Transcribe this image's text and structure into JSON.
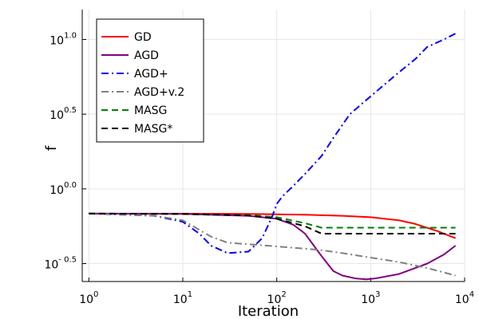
{
  "chart_data": {
    "type": "line",
    "xlabel": "Iteration",
    "ylabel": "f",
    "xscale": "log10",
    "yscale": "log10",
    "xlim": [
      0.85,
      10000
    ],
    "ylim": [
      -0.62,
      1.2
    ],
    "xticks": [
      {
        "value": 1,
        "base": "10",
        "exp": "0"
      },
      {
        "value": 10,
        "base": "10",
        "exp": "1"
      },
      {
        "value": 100,
        "base": "10",
        "exp": "2"
      },
      {
        "value": 1000,
        "base": "10",
        "exp": "3"
      },
      {
        "value": 10000,
        "base": "10",
        "exp": "4"
      }
    ],
    "yticks": [
      {
        "value": -0.5,
        "base": "10",
        "exp": "- 0.5"
      },
      {
        "value": 0.0,
        "base": "10",
        "exp": "0.0"
      },
      {
        "value": 0.5,
        "base": "10",
        "exp": "0.5"
      },
      {
        "value": 1.0,
        "base": "10",
        "exp": "1.0"
      }
    ],
    "grid": true,
    "legend_position": "top-left",
    "series": [
      {
        "name": "GD",
        "color": "#ff0000",
        "dash": "solid",
        "x": [
          1,
          10,
          50,
          100,
          200,
          500,
          1000,
          2000,
          3000,
          5000,
          8000
        ],
        "y": [
          -0.165,
          -0.166,
          -0.168,
          -0.17,
          -0.173,
          -0.18,
          -0.19,
          -0.21,
          -0.235,
          -0.28,
          -0.33
        ]
      },
      {
        "name": "AGD",
        "color": "#800080",
        "dash": "solid",
        "x": [
          1,
          10,
          50,
          100,
          150,
          200,
          300,
          400,
          500,
          700,
          900,
          1100,
          2000,
          4000,
          6000,
          8000
        ],
        "y": [
          -0.165,
          -0.168,
          -0.18,
          -0.2,
          -0.24,
          -0.3,
          -0.45,
          -0.55,
          -0.58,
          -0.6,
          -0.605,
          -0.6,
          -0.57,
          -0.5,
          -0.44,
          -0.38
        ]
      },
      {
        "name": "AGD+",
        "color": "#0000ff",
        "dash": "dashdot",
        "x": [
          1,
          5,
          10,
          15,
          20,
          30,
          50,
          70,
          90,
          100,
          115,
          150,
          200,
          300,
          400,
          600,
          1000,
          2000,
          3000,
          4000,
          6000,
          8000
        ],
        "y": [
          -0.165,
          -0.18,
          -0.22,
          -0.3,
          -0.38,
          -0.43,
          -0.42,
          -0.33,
          -0.18,
          -0.1,
          -0.05,
          0.02,
          0.1,
          0.22,
          0.34,
          0.5,
          0.62,
          0.78,
          0.87,
          0.95,
          1.0,
          1.04
        ]
      },
      {
        "name": "AGD+v.2",
        "color": "#808080",
        "dash": "dashdot",
        "x": [
          1,
          5,
          10,
          20,
          30,
          50,
          100,
          200,
          300,
          500,
          1000,
          2000,
          4000,
          8000
        ],
        "y": [
          -0.165,
          -0.18,
          -0.21,
          -0.32,
          -0.36,
          -0.37,
          -0.385,
          -0.4,
          -0.41,
          -0.43,
          -0.46,
          -0.49,
          -0.53,
          -0.58
        ]
      },
      {
        "name": "MASG",
        "color": "#008000",
        "dash": "dashed",
        "x": [
          1,
          10,
          50,
          100,
          200,
          300,
          1000,
          8000
        ],
        "y": [
          -0.165,
          -0.168,
          -0.175,
          -0.19,
          -0.23,
          -0.26,
          -0.26,
          -0.26
        ]
      },
      {
        "name": "MASG*",
        "color": "#000000",
        "dash": "dashed",
        "x": [
          1,
          10,
          50,
          100,
          200,
          300,
          350,
          1000,
          8000
        ],
        "y": [
          -0.165,
          -0.168,
          -0.178,
          -0.2,
          -0.25,
          -0.3,
          -0.3,
          -0.3,
          -0.3
        ]
      }
    ]
  }
}
